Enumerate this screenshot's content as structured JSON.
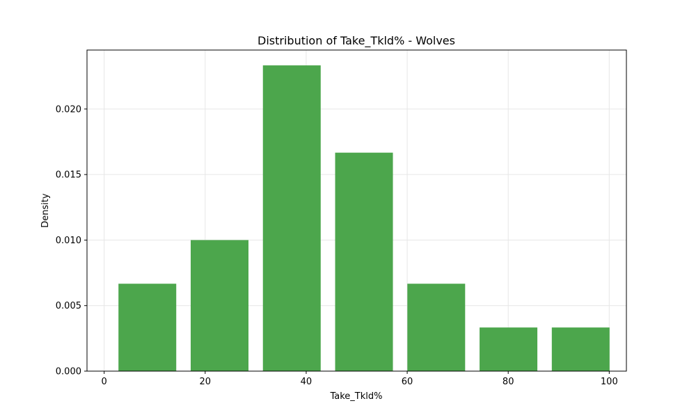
{
  "chart_data": {
    "type": "bar",
    "title": "Distribution of Take_Tkld% - Wolves",
    "xlabel": "Take_Tkld%",
    "ylabel": "Density",
    "bin_edges": [
      1.4,
      15.7,
      30.0,
      44.3,
      58.6,
      72.9,
      87.2,
      101.5
    ],
    "bar_fraction": 0.8,
    "values": [
      0.00667,
      0.01,
      0.02333,
      0.01667,
      0.00667,
      0.00333,
      0.00333
    ],
    "xlim": [
      -3.4,
      103.4
    ],
    "ylim": [
      0,
      0.0245
    ],
    "xticks": [
      0,
      20,
      40,
      60,
      80,
      100
    ],
    "xtick_labels": [
      "0",
      "20",
      "40",
      "60",
      "80",
      "100"
    ],
    "yticks": [
      0,
      0.005,
      0.01,
      0.015,
      0.02
    ],
    "ytick_labels": [
      "0.000",
      "0.005",
      "0.010",
      "0.015",
      "0.020"
    ],
    "grid": true,
    "colors": {
      "bar": "#4ca64c",
      "grid": "#e6e6e6",
      "axis": "#000000"
    }
  }
}
